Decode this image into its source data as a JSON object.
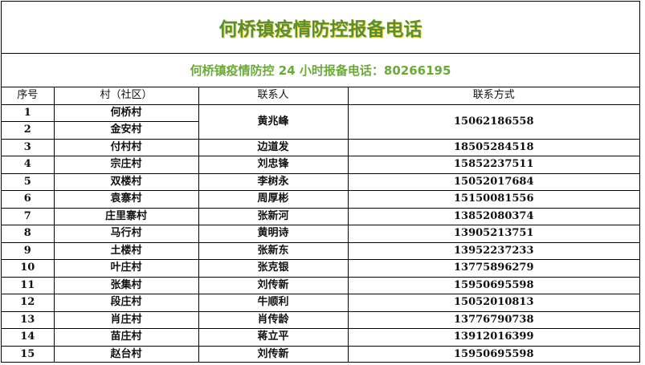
{
  "colors": {
    "title": "#5b8e2c",
    "subtitle": "#6aab35"
  },
  "title": "何桥镇疫情防控报备电话",
  "subtitle": "何桥镇疫情防控 24 小时报备电话：80266195",
  "headers": [
    "序号",
    "村（社区）",
    "联系人",
    "联系方式"
  ],
  "rows": [
    {
      "no": "1",
      "village": "何桥村",
      "contact": "黄兆峰",
      "phone": "15062186558"
    },
    {
      "no": "2",
      "village": "金安村"
    },
    {
      "no": "3",
      "village": "付村村",
      "contact": "边道发",
      "phone": "18505284518"
    },
    {
      "no": "4",
      "village": "宗庄村",
      "contact": "刘忠锋",
      "phone": "15852237511"
    },
    {
      "no": "5",
      "village": "双楼村",
      "contact": "李树永",
      "phone": "15052017684"
    },
    {
      "no": "6",
      "village": "袁寨村",
      "contact": "周厚彬",
      "phone": "15150081556"
    },
    {
      "no": "7",
      "village": "庄里寨村",
      "contact": "张新河",
      "phone": "13852080374"
    },
    {
      "no": "8",
      "village": "马行村",
      "contact": "黄明诗",
      "phone": "13905213751"
    },
    {
      "no": "9",
      "village": "土楼村",
      "contact": "张新东",
      "phone": "13952237233"
    },
    {
      "no": "10",
      "village": "叶庄村",
      "contact": "张克银",
      "phone": "13775896279"
    },
    {
      "no": "11",
      "village": "张集村",
      "contact": "刘传新",
      "phone": "15950695598"
    },
    {
      "no": "12",
      "village": "段庄村",
      "contact": "牛顺利",
      "phone": "15052010813"
    },
    {
      "no": "13",
      "village": "肖庄村",
      "contact": "肖传龄",
      "phone": "13776790738"
    },
    {
      "no": "14",
      "village": "苗庄村",
      "contact": "蒋立平",
      "phone": "13912016399"
    },
    {
      "no": "15",
      "village": "赵台村",
      "contact": "刘传新",
      "phone": "15950695598"
    }
  ]
}
